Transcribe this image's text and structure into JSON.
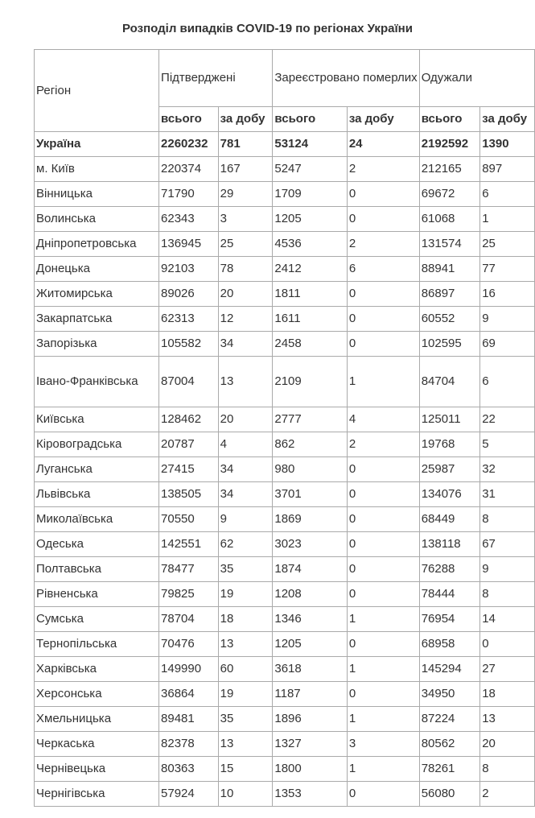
{
  "title": "Розподіл випадків COVID-19 по регіонах України",
  "table": {
    "headers": {
      "region": "Регіон",
      "confirmed": "Підтверджені",
      "deaths": "Зареєстровано померлих",
      "recovered": "Одужали",
      "total": "всього",
      "per_day": "за добу"
    },
    "rows": [
      [
        "Україна",
        "2260232",
        "781",
        "53124",
        "24",
        "2192592",
        "1390"
      ],
      [
        "м. Київ",
        "220374",
        "167",
        "5247",
        "2",
        "212165",
        "897"
      ],
      [
        "Вінницька",
        "71790",
        "29",
        "1709",
        "0",
        "69672",
        "6"
      ],
      [
        "Волинська",
        "62343",
        "3",
        "1205",
        "0",
        "61068",
        "1"
      ],
      [
        "Дніпропетровська",
        "136945",
        "25",
        "4536",
        "2",
        "131574",
        "25"
      ],
      [
        "Донецька",
        "92103",
        "78",
        "2412",
        "6",
        "88941",
        "77"
      ],
      [
        "Житомирська",
        "89026",
        "20",
        "1811",
        "0",
        "86897",
        "16"
      ],
      [
        "Закарпатська",
        "62313",
        "12",
        "1611",
        "0",
        "60552",
        "9"
      ],
      [
        "Запорізька",
        "105582",
        "34",
        "2458",
        "0",
        "102595",
        "69"
      ],
      [
        "Івано-Франківська",
        "87004",
        "13",
        "2109",
        "1",
        "84704",
        "6"
      ],
      [
        "Київська",
        "128462",
        "20",
        "2777",
        "4",
        "125011",
        "22"
      ],
      [
        "Кіровоградська",
        "20787",
        "4",
        "862",
        "2",
        "19768",
        "5"
      ],
      [
        "Луганська",
        "27415",
        "34",
        "980",
        "0",
        "25987",
        "32"
      ],
      [
        "Львівська",
        "138505",
        "34",
        "3701",
        "0",
        "134076",
        "31"
      ],
      [
        "Миколаївська",
        "70550",
        "9",
        "1869",
        "0",
        "68449",
        "8"
      ],
      [
        "Одеська",
        "142551",
        "62",
        "3023",
        "0",
        "138118",
        "67"
      ],
      [
        "Полтавська",
        "78477",
        "35",
        "1874",
        "0",
        "76288",
        "9"
      ],
      [
        "Рівненська",
        "79825",
        "19",
        "1208",
        "0",
        "78444",
        "8"
      ],
      [
        "Сумська",
        "78704",
        "18",
        "1346",
        "1",
        "76954",
        "14"
      ],
      [
        "Тернопільська",
        "70476",
        "13",
        "1205",
        "0",
        "68958",
        "0"
      ],
      [
        "Харківська",
        "149990",
        "60",
        "3618",
        "1",
        "145294",
        "27"
      ],
      [
        "Херсонська",
        "36864",
        "19",
        "1187",
        "0",
        "34950",
        "18"
      ],
      [
        "Хмельницька",
        "89481",
        "35",
        "1896",
        "1",
        "87224",
        "13"
      ],
      [
        "Черкаська",
        "82378",
        "13",
        "1327",
        "3",
        "80562",
        "20"
      ],
      [
        "Чернівецька",
        "80363",
        "15",
        "1800",
        "1",
        "78261",
        "8"
      ],
      [
        "Чернігівська",
        "57924",
        "10",
        "1353",
        "0",
        "56080",
        "2"
      ]
    ]
  }
}
